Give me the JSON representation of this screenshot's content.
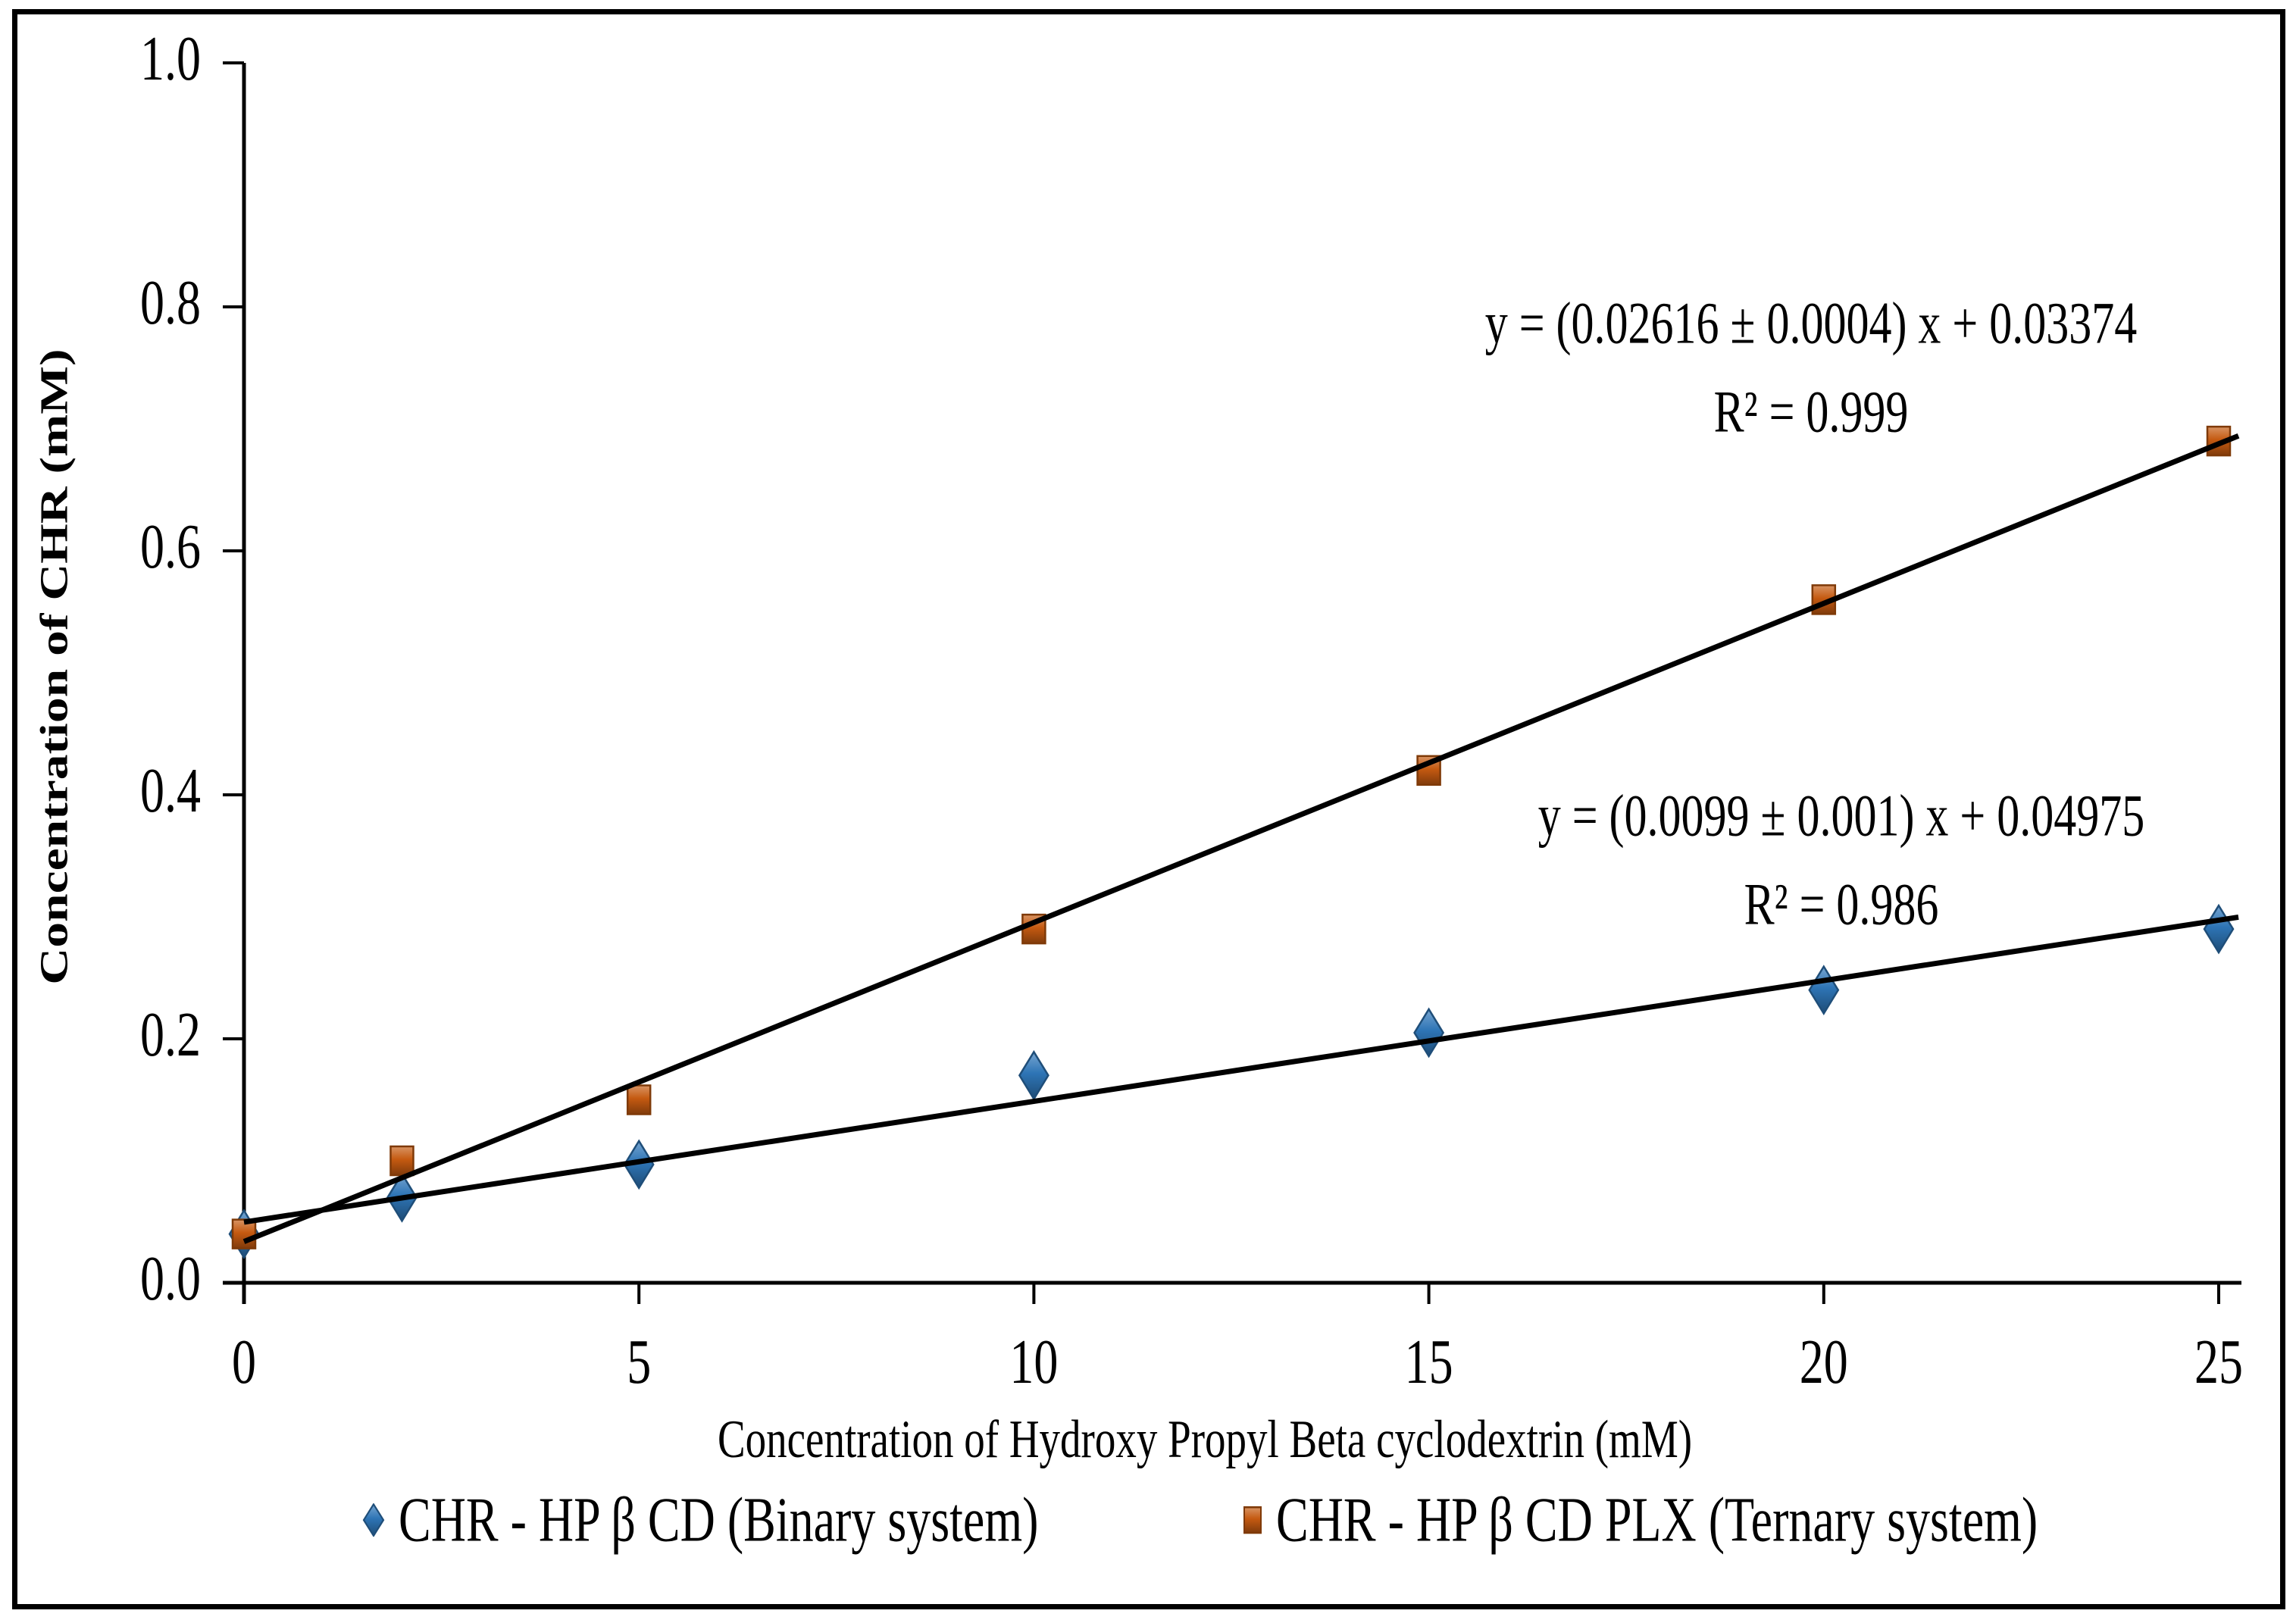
{
  "figure": {
    "background": "#FFFFFF",
    "border_color": "#000000",
    "trendline_color": "#000000"
  },
  "chart_data": {
    "type": "scatter",
    "title": "",
    "xlabel": "Concentration of Hydroxy Propyl Beta cyclodextrin (mM)",
    "ylabel": "Concentration of CHR  (mM)",
    "xlim": [
      0,
      25
    ],
    "ylim": [
      0.0,
      1.0
    ],
    "grid": false,
    "legend_position": "bottom",
    "x_tick_values": [
      0,
      5,
      10,
      15,
      20,
      25
    ],
    "x_tick_labels": [
      "0",
      "5",
      "10",
      "15",
      "20",
      "25"
    ],
    "y_tick_values": [
      0.0,
      0.2,
      0.4,
      0.6,
      0.8,
      1.0
    ],
    "y_tick_labels": [
      "0.0",
      "0.2",
      "0.4",
      "0.6",
      "0.8",
      "1.0"
    ],
    "series": [
      {
        "name": "CHR - HP β CD (Binary system)",
        "marker": "diamond",
        "color": "#2E75B6",
        "border_color": "#1F4E79",
        "x": [
          0,
          2,
          5,
          10,
          15,
          20,
          25
        ],
        "y": [
          0.04,
          0.07,
          0.097,
          0.17,
          0.205,
          0.24,
          0.29
        ],
        "trendline": {
          "slope": 0.0099,
          "intercept": 0.04975,
          "color": "#000000"
        },
        "equation_line1": "y = (0.0099 ± 0.001) x + 0.04975",
        "equation_line2": "R² = 0.986"
      },
      {
        "name": "CHR - HP β CD PLX (Ternary system)",
        "marker": "square",
        "color": "#C55A11",
        "border_color": "#7F3A08",
        "x": [
          0,
          2,
          5,
          10,
          15,
          20,
          25
        ],
        "y": [
          0.04,
          0.1,
          0.15,
          0.29,
          0.42,
          0.56,
          0.69
        ],
        "trendline": {
          "slope": 0.02616,
          "intercept": 0.03374,
          "color": "#000000"
        },
        "equation_line1": "y = (0.02616 ± 0.0004) x + 0.03374",
        "equation_line2": "R² = 0.999"
      }
    ]
  }
}
